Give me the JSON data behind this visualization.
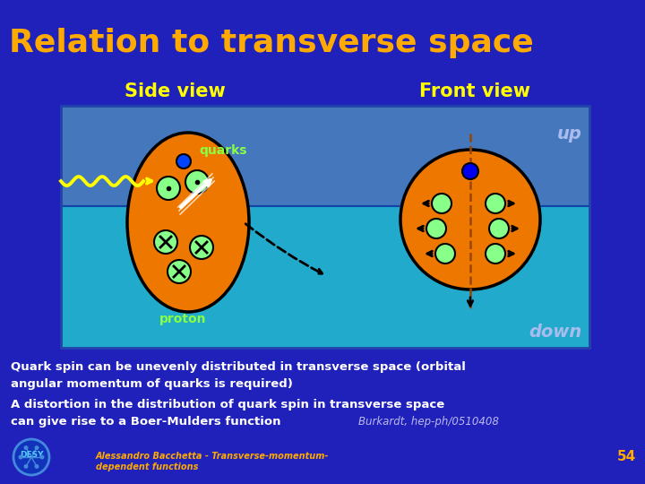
{
  "bg_color": "#2020bb",
  "title": "Relation to transverse space",
  "title_color": "#ffaa00",
  "title_fontsize": 26,
  "side_view_label": "Side view",
  "front_view_label": "Front view",
  "label_color": "#ffff00",
  "label_fontsize": 15,
  "box_bg_upper": "#4477bb",
  "box_bg_lower": "#22aacc",
  "up_text": "up",
  "down_text": "down",
  "updown_color": "#aabbee",
  "quarks_label": "quarks",
  "quarks_color": "#88ff44",
  "proton_label": "proton",
  "proton_color": "#88ff44",
  "proton_fill": "#ee7700",
  "proton_edge": "#111111",
  "quark_fill_green": "#88ff88",
  "quark_fill_yellow": "#aaee44",
  "text1": "Quark spin can be unevenly distributed in transverse space (orbital",
  "text2": "angular momentum of quarks is required)",
  "text3": "A distortion in the distribution of quark spin in transverse space",
  "text4": "can give rise to a Boer-Mulders function",
  "text5": "Burkardt, hep-ph/0510408",
  "text_color": "#ffffff",
  "text_italic_color": "#bbbbee",
  "footer_text": "Alessandro Bacchetta - Transverse-momentum-\ndependent functions",
  "footer_color": "#ffaa00",
  "page_num": "54"
}
